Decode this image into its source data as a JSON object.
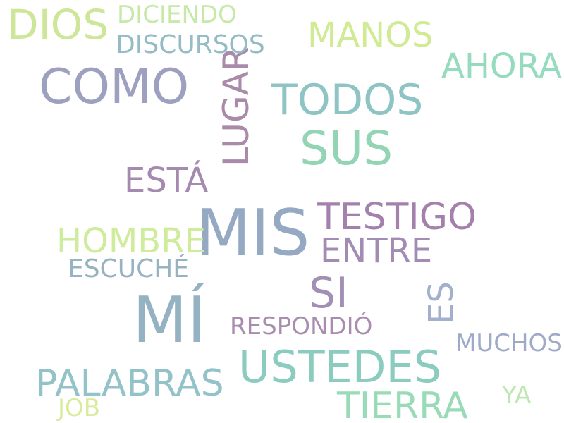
{
  "words": [
    {
      "text": "MÍ",
      "color": "#95b2c2"
    },
    {
      "text": "MIS",
      "color": "#96a9c2"
    },
    {
      "text": "COMO",
      "color": "#9ea0c0"
    },
    {
      "text": "SUS",
      "color": "#93d4b4"
    },
    {
      "text": "USTEDES",
      "color": "#8ccbbf"
    },
    {
      "text": "TODOS",
      "color": "#8ec4c4"
    },
    {
      "text": "DIOS",
      "color": "#cde698"
    },
    {
      "text": "TIERRA",
      "color": "#99dbb7"
    },
    {
      "text": "PALABRAS",
      "color": "#93c3c8"
    },
    {
      "text": "TESTIGO",
      "color": "#a481ac"
    },
    {
      "text": "LUGAR",
      "color": "#a98aa9"
    },
    {
      "text": "SI",
      "color": "#a28fb4"
    },
    {
      "text": "HOMBRE",
      "color": "#cfec9c"
    },
    {
      "text": "ESTÁ",
      "color": "#a58ab0"
    },
    {
      "text": "AHORA",
      "color": "#96dbbe"
    },
    {
      "text": "ENTRE",
      "color": "#a38cb4"
    },
    {
      "text": "MANOS",
      "color": "#d1eb94"
    },
    {
      "text": "ES",
      "color": "#a3b0cd"
    },
    {
      "text": "DISCURSOS",
      "color": "#95bcc6"
    },
    {
      "text": "DICIENDO",
      "color": "#c6e9a8"
    },
    {
      "text": "ESCUCHÉ",
      "color": "#97b3c2"
    },
    {
      "text": "RESPONDIÓ",
      "color": "#a88dae"
    },
    {
      "text": "MUCHOS",
      "color": "#9eaac8"
    },
    {
      "text": "YA",
      "color": "#bde6b2"
    },
    {
      "text": "JOB",
      "color": "#d6ec9c"
    }
  ]
}
